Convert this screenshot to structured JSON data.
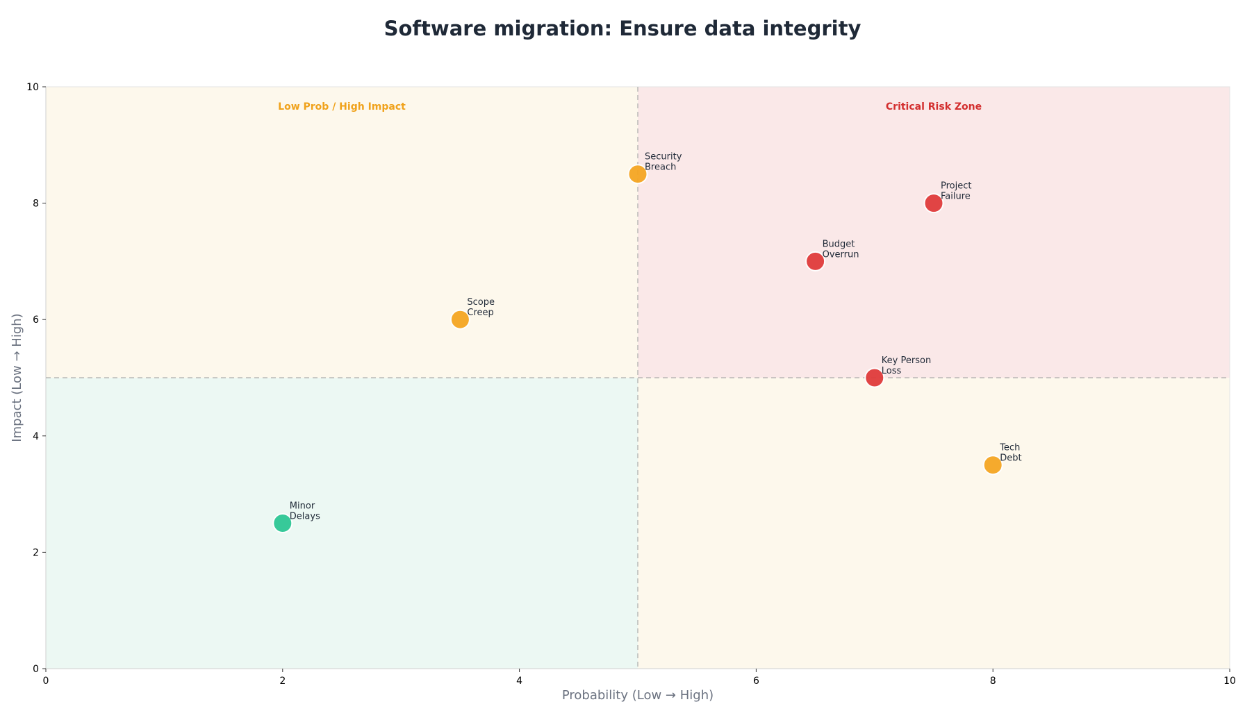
{
  "chart_data": {
    "type": "scatter",
    "title": "Software migration: Ensure data integrity",
    "xlabel": "Probability (Low → High)",
    "ylabel": "Impact (Low → High)",
    "xlim": [
      0,
      10
    ],
    "ylim": [
      0,
      10
    ],
    "xticks": [
      0,
      2,
      4,
      6,
      8,
      10
    ],
    "yticks": [
      0,
      2,
      4,
      6,
      8,
      10
    ],
    "grid": false,
    "dividers": {
      "x": 5,
      "y": 5
    },
    "quadrants": [
      {
        "id": "top-left",
        "label": "Low Prob / High Impact",
        "fill": "#fdf8ec",
        "label_color": "#f0a21b"
      },
      {
        "id": "top-right",
        "label": "Critical Risk Zone",
        "fill": "#fae8e8",
        "label_color": "#d32f2f"
      },
      {
        "id": "bottom-left",
        "label": "",
        "fill": "#ecf8f3",
        "label_color": ""
      },
      {
        "id": "bottom-right",
        "label": "",
        "fill": "#fdf8ec",
        "label_color": ""
      }
    ],
    "points": [
      {
        "label": [
          "Security",
          "Breach"
        ],
        "x": 5,
        "y": 8.5,
        "color": "#f5a623"
      },
      {
        "label": [
          "Project",
          "Failure"
        ],
        "x": 7.5,
        "y": 8,
        "color": "#e03c3c"
      },
      {
        "label": [
          "Budget",
          "Overrun"
        ],
        "x": 6.5,
        "y": 7,
        "color": "#e03c3c"
      },
      {
        "label": [
          "Scope",
          "Creep"
        ],
        "x": 3.5,
        "y": 6,
        "color": "#f5a623"
      },
      {
        "label": [
          "Key Person",
          "Loss"
        ],
        "x": 7,
        "y": 5,
        "color": "#e03c3c"
      },
      {
        "label": [
          "Tech",
          "Debt"
        ],
        "x": 8,
        "y": 3.5,
        "color": "#f5a623"
      },
      {
        "label": [
          "Minor",
          "Delays"
        ],
        "x": 2,
        "y": 2.5,
        "color": "#2ec795"
      }
    ]
  }
}
